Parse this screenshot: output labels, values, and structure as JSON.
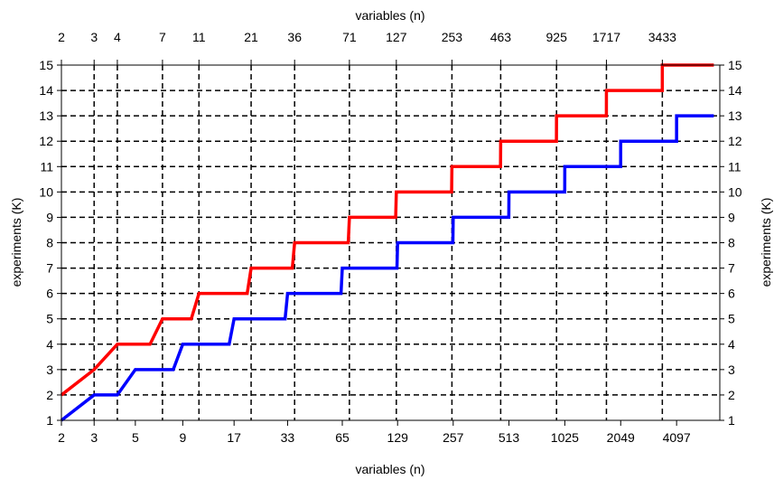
{
  "chart_data": {
    "type": "line",
    "xscale": "log",
    "xlim": [
      2,
      7000
    ],
    "ylim": [
      1,
      15
    ],
    "grid": true,
    "grid_style": "dashed",
    "xlabel_bottom": "variables (n)",
    "xlabel_top": "variables (n)",
    "ylabel_left": "experiments (K)",
    "ylabel_right": "experiments (K)",
    "bottom_ticks": [
      "2",
      "3",
      "5",
      "9",
      "17",
      "33",
      "65",
      "129",
      "257",
      "513",
      "1025",
      "2049",
      "4097"
    ],
    "top_ticks": [
      "2",
      "3",
      "4",
      "7",
      "11",
      "21",
      "36",
      "71",
      "127",
      "253",
      "463",
      "925",
      "1717",
      "3433"
    ],
    "y_ticks": [
      "1",
      "2",
      "3",
      "4",
      "5",
      "6",
      "7",
      "8",
      "9",
      "10",
      "11",
      "12",
      "13",
      "14",
      "15"
    ],
    "series": [
      {
        "color": "#ff0000",
        "points": [
          [
            2,
            2
          ],
          [
            3,
            3
          ],
          [
            4,
            4
          ],
          [
            6,
            4
          ],
          [
            7,
            5
          ],
          [
            10,
            5
          ],
          [
            11,
            6
          ],
          [
            20,
            6
          ],
          [
            21,
            7
          ],
          [
            35,
            7
          ],
          [
            36,
            8
          ],
          [
            70,
            8
          ],
          [
            71,
            9
          ],
          [
            126,
            9
          ],
          [
            127,
            10
          ],
          [
            252,
            10
          ],
          [
            253,
            11
          ],
          [
            462,
            11
          ],
          [
            463,
            12
          ],
          [
            924,
            12
          ],
          [
            925,
            13
          ],
          [
            1716,
            13
          ],
          [
            1717,
            14
          ],
          [
            3432,
            14
          ],
          [
            3433,
            15
          ],
          [
            6500,
            15
          ]
        ]
      },
      {
        "color": "#0000ff",
        "points": [
          [
            2,
            1
          ],
          [
            3,
            2
          ],
          [
            4,
            2
          ],
          [
            5,
            3
          ],
          [
            8,
            3
          ],
          [
            9,
            4
          ],
          [
            16,
            4
          ],
          [
            17,
            5
          ],
          [
            32,
            5
          ],
          [
            33,
            6
          ],
          [
            64,
            6
          ],
          [
            65,
            7
          ],
          [
            128,
            7
          ],
          [
            129,
            8
          ],
          [
            256,
            8
          ],
          [
            257,
            9
          ],
          [
            512,
            9
          ],
          [
            513,
            10
          ],
          [
            1024,
            10
          ],
          [
            1025,
            11
          ],
          [
            2048,
            11
          ],
          [
            2049,
            12
          ],
          [
            4096,
            12
          ],
          [
            4097,
            13
          ],
          [
            6500,
            13
          ]
        ]
      }
    ]
  }
}
